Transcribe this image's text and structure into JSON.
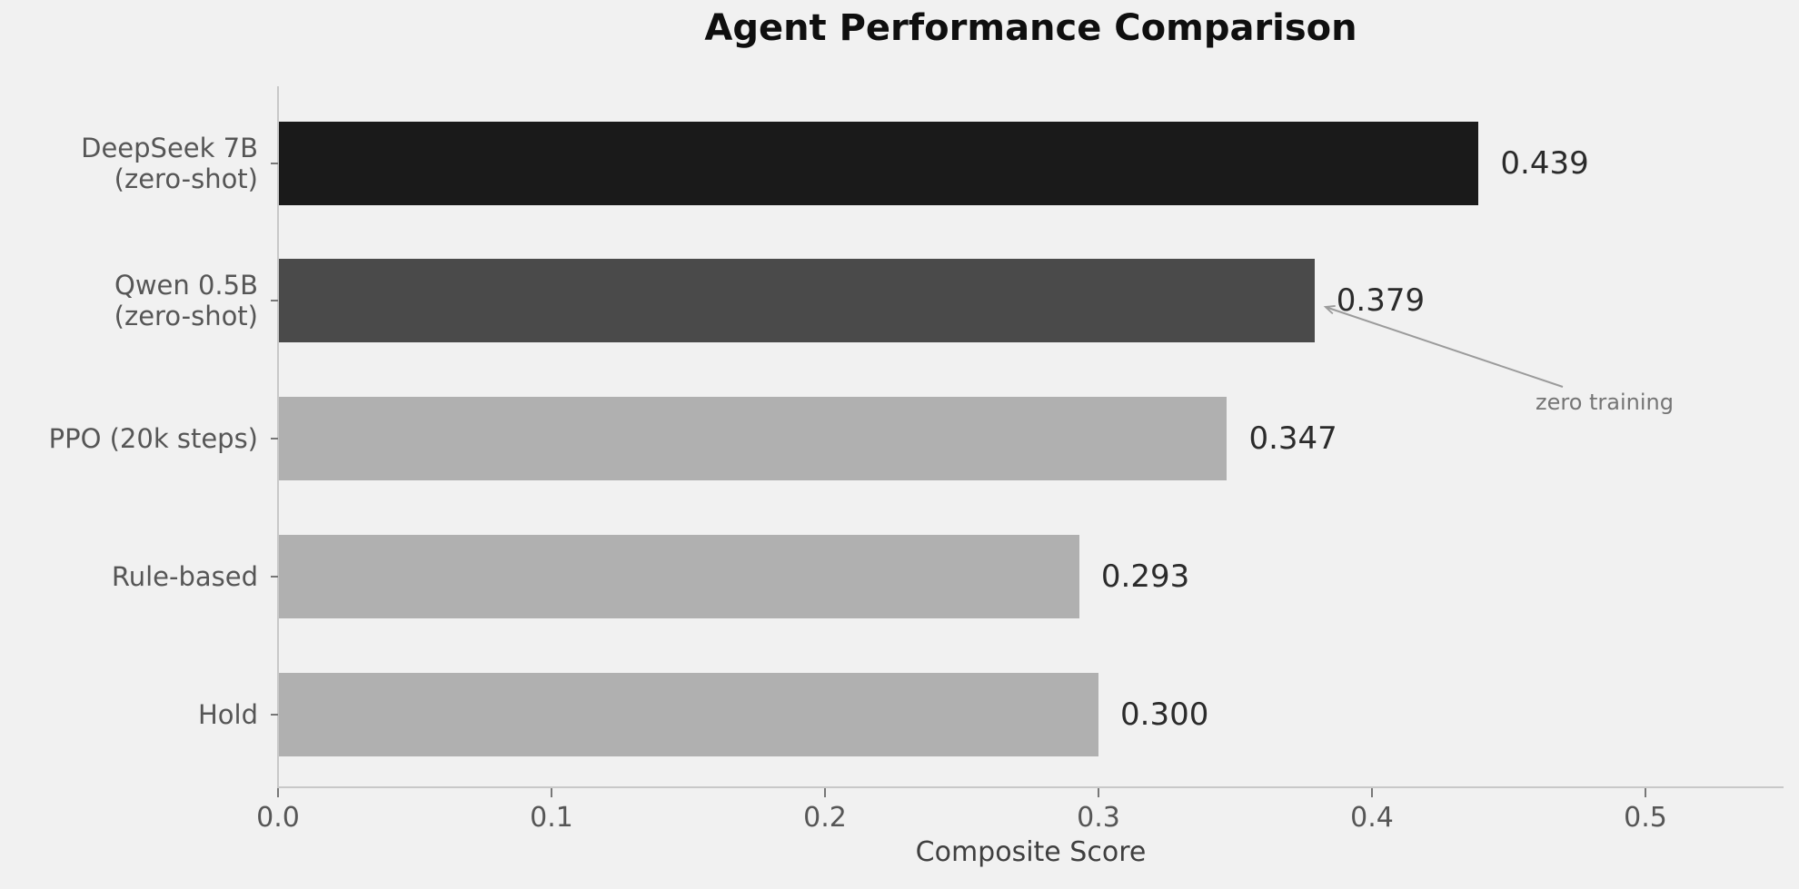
{
  "chart_data": {
    "type": "bar",
    "orientation": "horizontal",
    "title": "Agent Performance Comparison",
    "xlabel": "Composite Score",
    "ylabel": "",
    "categories": [
      "DeepSeek 7B\n(zero-shot)",
      "Qwen 0.5B\n(zero-shot)",
      "PPO (20k steps)",
      "Rule-based",
      "Hold"
    ],
    "values": [
      0.439,
      0.379,
      0.347,
      0.293,
      0.3
    ],
    "value_labels": [
      "0.439",
      "0.379",
      "0.347",
      "0.293",
      "0.300"
    ],
    "bar_colors": [
      "#1a1a1a",
      "#4a4a4a",
      "#b0b0b0",
      "#b0b0b0",
      "#b0b0b0"
    ],
    "xlim": [
      0,
      0.55
    ],
    "xticks": [
      0,
      0.1,
      0.2,
      0.3,
      0.4,
      0.5
    ],
    "xtick_labels": [
      "0.0",
      "0.1",
      "0.2",
      "0.3",
      "0.4",
      "0.5"
    ],
    "grid": false,
    "legend_position": "none",
    "annotation": {
      "text": "zero training",
      "target_category": "Qwen 0.5B\n(zero-shot)",
      "target_value": 0.379,
      "arrow_color": "#9b9b9b"
    },
    "colors": {
      "background": "#f1f1f1",
      "spine": "#c8c8c8",
      "tick": "#777777",
      "category_label": "#565656",
      "xtick_label": "#565656",
      "value_label": "#2b2b2b",
      "title": "#0f0f0f",
      "xlabel": "#3f3f3f",
      "annotation_text": "#757575"
    }
  }
}
